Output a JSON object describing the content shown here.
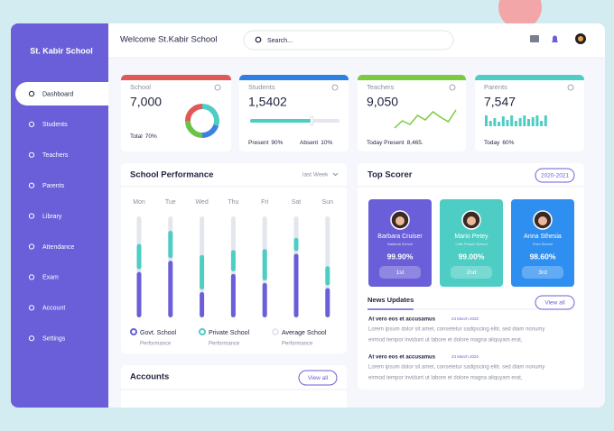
{
  "sidebar": {
    "title": "St. Kabir School",
    "menu": [
      "Dashboard",
      "Students",
      "Teachers",
      "Parents",
      "Library",
      "Attendance",
      "Exam",
      "Account",
      "Settings"
    ]
  },
  "header": {
    "welcome": "Welcome St.Kabir School",
    "search_placeholder": "Search..."
  },
  "stats": [
    {
      "label": "School",
      "value": "7,000",
      "footer": [
        [
          "Total",
          "70%"
        ]
      ],
      "color": "#e05858",
      "donut": [
        {
          "value": 30,
          "color": "#4ecdc4"
        },
        {
          "value": 20,
          "color": "#3b82e0"
        },
        {
          "value": 25,
          "color": "#6cc24a"
        },
        {
          "value": 25,
          "color": "#e05858"
        }
      ]
    },
    {
      "label": "Students",
      "value": "1,5402",
      "footer": [
        [
          "Present",
          "90%"
        ],
        [
          "Absent",
          "10%"
        ]
      ],
      "color": "#2f7fe0",
      "progress": 69
    },
    {
      "label": "Teachers",
      "value": "9,050",
      "footer": [
        [
          "Today Present",
          "8,465."
        ]
      ],
      "color": "#7acb3f",
      "trend": [
        0,
        8,
        4,
        14,
        9,
        18,
        12,
        7,
        20
      ]
    },
    {
      "label": "Parents",
      "value": "7,547",
      "footer": [
        [
          "Today",
          "60%"
        ]
      ],
      "color": "#4ecdc4",
      "trend": [
        12,
        6,
        9,
        5,
        11,
        7,
        12,
        6,
        9,
        12,
        8,
        10,
        12,
        6,
        12
      ]
    }
  ],
  "performance": {
    "type": "bar",
    "title": "School Performance",
    "period": "last Week",
    "categories": [
      "Mon",
      "Tue",
      "Wed",
      "Thu",
      "Fri",
      "Sat",
      "Sun"
    ],
    "ylim": [
      0,
      100
    ],
    "series": [
      {
        "name": "Govt. School",
        "color": "#6a5fd8",
        "values": [
          45,
          56,
          25,
          43,
          34,
          63,
          29
        ]
      },
      {
        "name": "Private School",
        "color": "#4ecdc4",
        "values": [
          25,
          27,
          34,
          21,
          31,
          13,
          19
        ]
      },
      {
        "name": "Average School",
        "color": "#e4e6ee"
      }
    ],
    "legend_caption": "Performance"
  },
  "accounts": {
    "title": "Accounts",
    "button": "View all"
  },
  "top_scorer": {
    "title": "Top Scorer",
    "year": "2020-2021",
    "students": [
      {
        "name": "Barbara Cruiser",
        "school": "Nalanda School",
        "score": "99.90%",
        "rank": "1st",
        "color": "#6a5fd8"
      },
      {
        "name": "Mario Petey",
        "school": "Little Flower School",
        "score": "99.00%",
        "rank": "2nd",
        "color": "#4ecdc4"
      },
      {
        "name": "Anna Sthesia",
        "school": "Euro School",
        "score": "98.60%",
        "rank": "3rd",
        "color": "#2f8ff0"
      }
    ]
  },
  "news": {
    "title": "News Updates",
    "button": "View all",
    "items": [
      {
        "title": "At vero eos et accusamus",
        "date": "23 March 2020",
        "lines": [
          "Lorem ipsum dolor sit amet, consetetur sadipscing elitr, sed diam nonumy",
          "eirmod tempor invidunt ut labore et dolore magna aliquyam erat,"
        ]
      },
      {
        "title": "At vero eos et accusamus",
        "date": "23 March 2020",
        "lines": [
          "Lorem ipsum dolor sit amet, consetetur sadipscing elitr, sed diam nonumy",
          "eirmod tempor invidunt ut labore et dolore magna aliquyam erat,"
        ]
      }
    ]
  }
}
